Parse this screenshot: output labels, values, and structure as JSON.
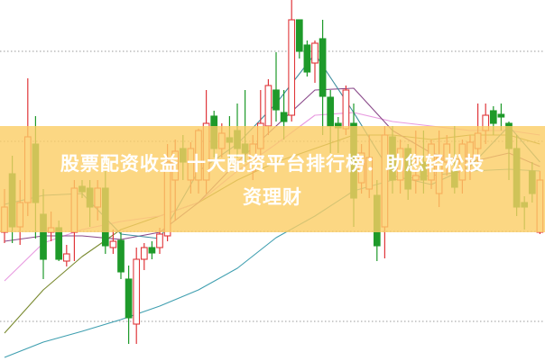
{
  "banner": {
    "line1": "股票配资收益 十大配资平台排行榜：助您轻松投",
    "line2": "资理财"
  },
  "colors": {
    "up": "#e0363a",
    "down": "#1e9a2a",
    "band": "#fcd783",
    "grid": "#999999",
    "ma": [
      "#3f9fb0",
      "#7a8a30",
      "#e89ae0",
      "#8a4a8a",
      "#3f8f9f"
    ]
  },
  "chart_data": {
    "type": "candlestick",
    "title": "",
    "xlabel": "",
    "ylabel": "",
    "ylim": [
      5.6,
      45.7
    ],
    "grid": {
      "horizontal": true,
      "style": "dotted",
      "levels": [
        10,
        20,
        30,
        40
      ]
    },
    "candles": [
      [
        19.9,
        24.7,
        18.7,
        22.7
      ],
      [
        26.4,
        28.4,
        18.7,
        20.5
      ],
      [
        20.5,
        25.7,
        18.5,
        23.2
      ],
      [
        23.2,
        37.0,
        21.7,
        30.5
      ],
      [
        29.7,
        32.8,
        19.2,
        23.2
      ],
      [
        21.9,
        24.7,
        14.7,
        16.9
      ],
      [
        19.9,
        22.2,
        18.9,
        20.4
      ],
      [
        20.4,
        21.2,
        16.7,
        16.9
      ],
      [
        16.7,
        18.5,
        16.1,
        17.5
      ],
      [
        19.9,
        25.7,
        16.7,
        24.8
      ],
      [
        25.0,
        25.7,
        23.7,
        24.4
      ],
      [
        24.8,
        25.7,
        20.5,
        22.7
      ],
      [
        22.7,
        25.7,
        21.2,
        24.8
      ],
      [
        24.8,
        26.7,
        17.5,
        18.4
      ],
      [
        18.2,
        20.2,
        17.5,
        18.9
      ],
      [
        19.0,
        19.9,
        14.7,
        15.5
      ],
      [
        14.7,
        16.2,
        7.5,
        10.4
      ],
      [
        9.7,
        18.2,
        7.5,
        16.9
      ],
      [
        16.9,
        18.7,
        15.7,
        18.2
      ],
      [
        18.2,
        18.9,
        16.9,
        17.6
      ],
      [
        18.2,
        20.4,
        17.5,
        19.7
      ],
      [
        19.5,
        29.7,
        18.9,
        27.7
      ],
      [
        25.7,
        30.2,
        21.2,
        28.9
      ],
      [
        29.2,
        30.7,
        25.7,
        27.7
      ],
      [
        25.7,
        29.9,
        24.2,
        29.2
      ],
      [
        25.7,
        31.4,
        24.2,
        31.2
      ],
      [
        25.7,
        35.7,
        24.2,
        32.0
      ],
      [
        32.8,
        33.4,
        28.2,
        29.2
      ],
      [
        29.2,
        32.0,
        28.2,
        30.9
      ],
      [
        30.4,
        32.8,
        27.7,
        29.9
      ],
      [
        31.2,
        34.2,
        28.2,
        29.2
      ],
      [
        29.7,
        35.7,
        27.7,
        28.7
      ],
      [
        26.7,
        30.7,
        25.7,
        29.7
      ],
      [
        29.2,
        35.7,
        28.2,
        32.0
      ],
      [
        31.7,
        36.9,
        30.7,
        36.2
      ],
      [
        35.7,
        39.9,
        32.2,
        33.5
      ],
      [
        33.2,
        35.7,
        30.2,
        32.2
      ],
      [
        32.9,
        45.7,
        32.2,
        43.5
      ],
      [
        43.5,
        43.5,
        39.2,
        40.0
      ],
      [
        40.7,
        41.2,
        37.2,
        37.7
      ],
      [
        38.7,
        41.2,
        36.5,
        40.9
      ],
      [
        41.4,
        43.5,
        30.7,
        35.0
      ],
      [
        34.9,
        35.7,
        28.7,
        31.7
      ],
      [
        32.0,
        32.7,
        28.7,
        31.5
      ],
      [
        31.4,
        36.2,
        30.7,
        35.7
      ],
      [
        32.0,
        34.2,
        20.5,
        23.7
      ],
      [
        25.4,
        29.7,
        24.2,
        28.7
      ],
      [
        24.7,
        30.7,
        23.7,
        28.2
      ],
      [
        24.0,
        25.7,
        16.7,
        18.4
      ],
      [
        20.5,
        31.7,
        17.0,
        30.7
      ],
      [
        30.5,
        31.7,
        24.2,
        25.7
      ],
      [
        25.7,
        30.2,
        24.2,
        29.2
      ],
      [
        29.2,
        29.7,
        23.5,
        24.7
      ],
      [
        25.7,
        31.2,
        24.2,
        26.2
      ],
      [
        27.7,
        31.2,
        24.2,
        25.7
      ],
      [
        25.7,
        30.2,
        24.7,
        29.7
      ],
      [
        24.2,
        31.2,
        22.7,
        28.2
      ],
      [
        27.7,
        30.7,
        26.2,
        29.7
      ],
      [
        26.7,
        31.7,
        24.2,
        24.9
      ],
      [
        25.7,
        30.2,
        24.2,
        29.7
      ],
      [
        28.2,
        30.7,
        25.7,
        29.9
      ],
      [
        29.2,
        34.2,
        27.7,
        30.9
      ],
      [
        31.2,
        34.2,
        29.7,
        32.9
      ],
      [
        33.4,
        33.9,
        30.7,
        32.0
      ],
      [
        33.0,
        34.2,
        31.2,
        32.7
      ],
      [
        32.0,
        32.2,
        25.7,
        29.2
      ],
      [
        29.2,
        30.7,
        21.7,
        22.7
      ],
      [
        23.2,
        23.9,
        20.2,
        22.7
      ],
      [
        26.7,
        27.7,
        23.2,
        24.2
      ],
      [
        19.9,
        26.7,
        19.7,
        25.7
      ]
    ],
    "candle_fields": [
      "open",
      "high",
      "low",
      "close"
    ],
    "moving_averages": {
      "sample_indices": [
        0,
        5,
        10,
        15,
        20,
        25,
        30,
        35,
        40,
        45,
        50,
        55,
        60,
        65,
        69
      ],
      "series": [
        {
          "values": [
            6.0,
            7.7,
            8.9,
            10.2,
            11.7,
            13.5,
            15.9,
            19.3,
            21.7,
            24.5,
            25.7,
            26.2,
            26.7,
            26.9,
            26.7
          ]
        },
        {
          "values": [
            8.7,
            13.5,
            17.2,
            20.2,
            21.7,
            23.2,
            25.7,
            27.7,
            29.2,
            30.7,
            30.7,
            30.2,
            30.7,
            30.7,
            29.7
          ]
        },
        {
          "values": [
            14.5,
            18.7,
            20.2,
            21.1,
            21.7,
            23.2,
            26.7,
            29.7,
            32.9,
            33.2,
            32.2,
            31.7,
            31.2,
            31.2,
            30.7
          ]
        },
        {
          "values": [
            18.9,
            19.5,
            19.5,
            19.1,
            19.9,
            23.2,
            27.7,
            31.7,
            35.7,
            35.9,
            31.2,
            28.7,
            27.7,
            28.7,
            27.2
          ]
        },
        {
          "values": [
            23.0,
            24.0,
            24.2,
            19.7,
            19.2,
            26.7,
            29.7,
            34.2,
            39.7,
            33.2,
            26.2,
            25.2,
            27.2,
            31.7,
            27.7
          ]
        }
      ]
    }
  }
}
